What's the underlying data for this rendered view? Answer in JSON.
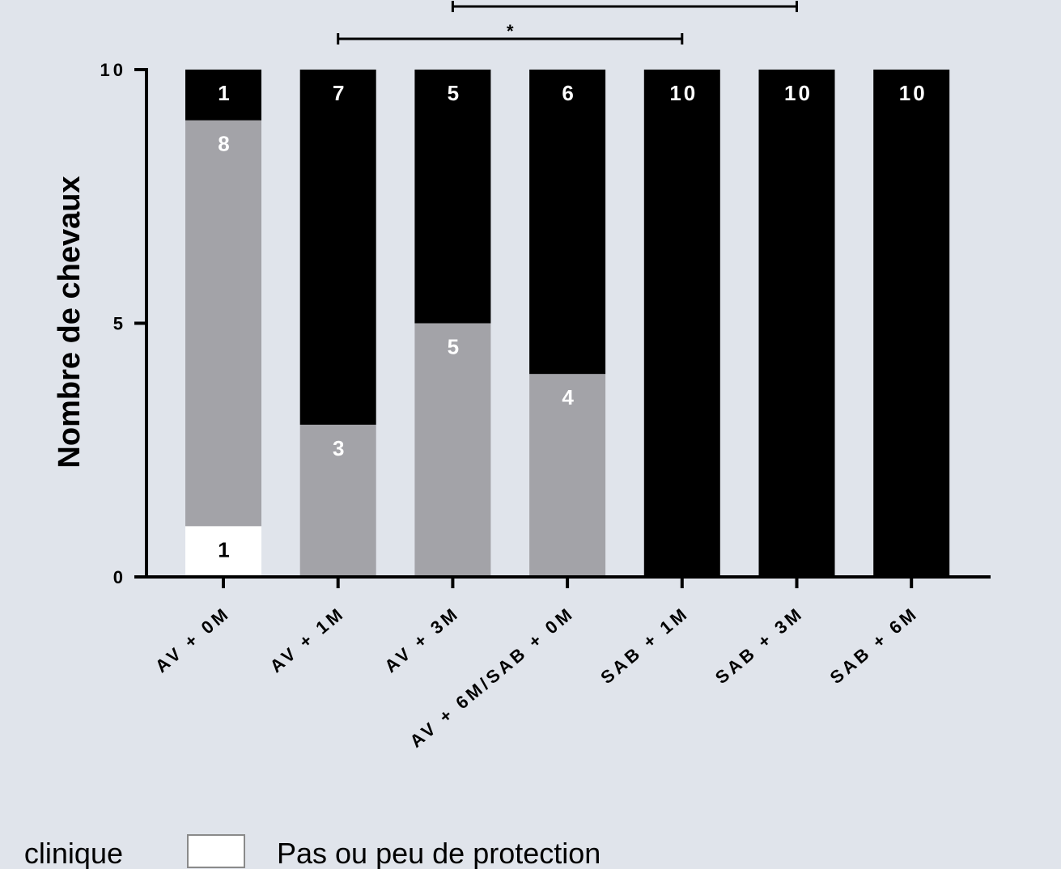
{
  "chart_data": {
    "type": "bar",
    "stacked": true,
    "ylabel": "Nombre de chevaux",
    "ylim": [
      0,
      10
    ],
    "yticks": [
      "0",
      "5",
      "10"
    ],
    "categories": [
      "AV + 0M",
      "AV + 1M",
      "AV + 3M",
      "AV + 6M/SAB + 0M",
      "SAB + 1M",
      "SAB + 3M",
      "SAB + 6M"
    ],
    "series": [
      {
        "name": "Pas ou peu de protection",
        "color": "#ffffff",
        "label_color": "#000000",
        "values": [
          1,
          0,
          0,
          0,
          0,
          0,
          0
        ]
      },
      {
        "color": "#a3a3a8",
        "label_color": "#ffffff",
        "values": [
          8,
          3,
          5,
          4,
          0,
          0,
          0
        ]
      },
      {
        "color": "#000000",
        "label_color": "#ffffff",
        "values": [
          1,
          7,
          5,
          6,
          10,
          10,
          10
        ]
      }
    ],
    "significance": [
      {
        "from": 1,
        "to": 4,
        "label": "*"
      },
      {
        "from": 2,
        "to": 5,
        "label": ""
      }
    ],
    "legend": {
      "placement": "bottom",
      "items": [
        {
          "text": "clinique",
          "swatch": false
        },
        {
          "text": "Pas ou peu de protection",
          "swatch": true,
          "color": "#ffffff"
        }
      ]
    }
  }
}
